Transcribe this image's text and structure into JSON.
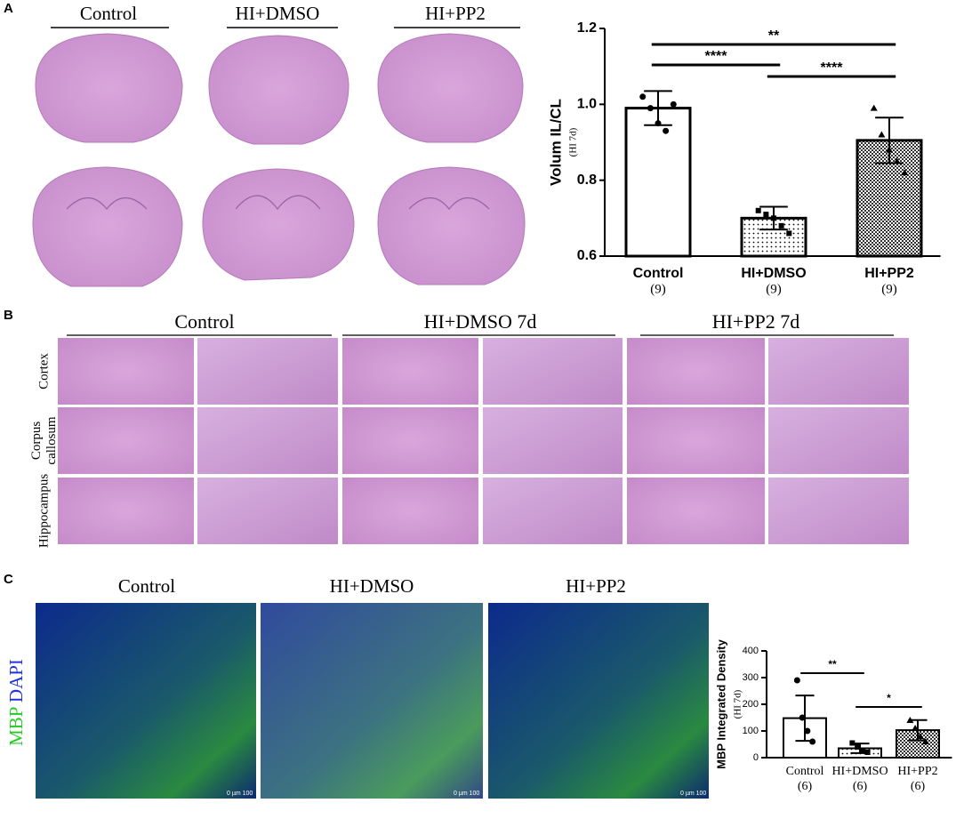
{
  "panel_labels": [
    "A",
    "B",
    "C"
  ],
  "panel_a": {
    "columns": [
      "Control",
      "HI+DMSO",
      "HI+PP2"
    ]
  },
  "panel_b": {
    "columns": [
      "Control",
      "HI+DMSO 7d",
      "HI+PP2 7d"
    ],
    "row_lines": [
      [
        "Cortex"
      ],
      [
        "Corpus",
        "callosum"
      ],
      [
        "Hippocampus"
      ]
    ]
  },
  "panel_c": {
    "columns": [
      "Control",
      "HI+DMSO",
      "HI+PP2"
    ],
    "stain_labels": [
      "MBP",
      "DAPI"
    ],
    "scale_bar": "0 µm 100"
  },
  "chart_data": [
    {
      "type": "bar",
      "ylabel": "Volum IL/CL",
      "ylabel_sub": "(HI 7d)",
      "categories": [
        "Control",
        "HI+DMSO",
        "HI+PP2"
      ],
      "n_labels": [
        "(9)",
        "(9)",
        "(9)"
      ],
      "values": [
        0.99,
        0.7,
        0.905
      ],
      "errors": [
        0.045,
        0.03,
        0.06
      ],
      "points": [
        [
          1.02,
          0.99,
          0.95,
          0.93,
          1.0
        ],
        [
          0.72,
          0.71,
          0.7,
          0.68,
          0.66
        ],
        [
          0.99,
          0.92,
          0.88,
          0.85,
          0.82
        ]
      ],
      "fills": [
        "plain",
        "dots",
        "checker"
      ],
      "ylim": [
        0.6,
        1.2
      ],
      "yticks": [
        0.6,
        0.8,
        {
          "value": 1.0,
          "label": "1.0"
        },
        1.2
      ],
      "annotations": [
        {
          "text": "****",
          "from": 0,
          "to": 1
        },
        {
          "text": "****",
          "from": 1,
          "to": 2
        },
        {
          "text": "**",
          "from": 0,
          "to": 2
        }
      ]
    },
    {
      "type": "bar",
      "ylabel": "MBP Integrated Density",
      "ylabel_sub": "(HI 7d)",
      "categories": [
        "Control",
        "HI+DMSO",
        "HI+PP2"
      ],
      "n_labels": [
        "(6)",
        "(6)",
        "(6)"
      ],
      "values": [
        148,
        35,
        103
      ],
      "errors": [
        85,
        18,
        38
      ],
      "points": [
        [
          290,
          150,
          100,
          60
        ],
        [
          55,
          40,
          25,
          20
        ],
        [
          140,
          110,
          80,
          60
        ]
      ],
      "fills": [
        "plain",
        "dots",
        "checker"
      ],
      "ylim": [
        0,
        400
      ],
      "yticks": [
        0,
        100,
        200,
        300,
        400
      ],
      "annotations": [
        {
          "text": "**",
          "from": 0,
          "to": 1
        },
        {
          "text": "*",
          "from": 1,
          "to": 2
        }
      ]
    }
  ]
}
